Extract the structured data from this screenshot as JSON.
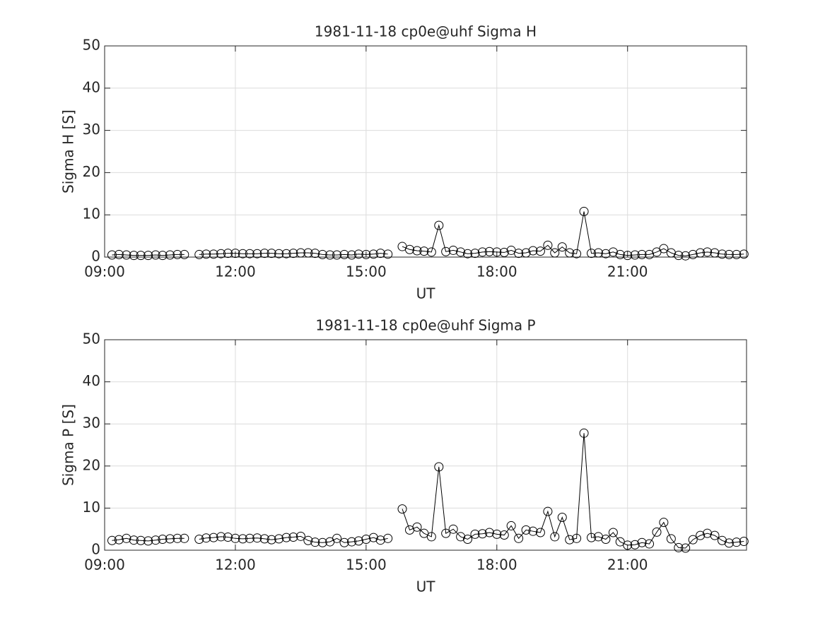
{
  "chart_data": [
    {
      "type": "line",
      "title": "1981-11-18  cp0e@uhf Sigma H",
      "xlabel": "UT",
      "ylabel": "Sigma H [S]",
      "x": [
        9.17,
        9.33,
        9.5,
        9.67,
        9.83,
        10,
        10.17,
        10.33,
        10.5,
        10.67,
        10.83,
        11,
        11.17,
        11.33,
        11.5,
        11.67,
        11.83,
        12,
        12.17,
        12.33,
        12.5,
        12.67,
        12.83,
        13,
        13.17,
        13.33,
        13.5,
        13.67,
        13.83,
        14,
        14.17,
        14.33,
        14.5,
        14.67,
        14.83,
        15,
        15.17,
        15.33,
        15.5,
        15.67,
        15.83,
        16,
        16.17,
        16.33,
        16.5,
        16.67,
        16.83,
        17,
        17.17,
        17.33,
        17.5,
        17.67,
        17.83,
        18,
        18.17,
        18.33,
        18.5,
        18.67,
        18.83,
        19,
        19.17,
        19.33,
        19.5,
        19.67,
        19.83,
        20,
        20.17,
        20.33,
        20.5,
        20.67,
        20.83,
        21,
        21.17,
        21.33,
        21.5,
        21.67,
        21.83,
        22,
        22.17,
        22.33,
        22.5,
        22.67,
        22.83,
        23,
        23.17,
        23.33,
        23.5,
        23.67
      ],
      "values": [
        0.5,
        0.6,
        0.5,
        0.4,
        0.4,
        0.4,
        0.5,
        0.4,
        0.5,
        0.6,
        0.6,
        null,
        0.6,
        0.7,
        0.7,
        0.8,
        0.9,
        0.9,
        0.8,
        0.8,
        0.8,
        0.9,
        0.9,
        0.8,
        0.8,
        0.9,
        1.0,
        1.0,
        0.9,
        0.6,
        0.5,
        0.5,
        0.6,
        0.5,
        0.7,
        0.6,
        0.7,
        0.9,
        0.7,
        null,
        2.5,
        1.8,
        1.5,
        1.4,
        1.2,
        7.5,
        1.3,
        1.6,
        1.2,
        0.8,
        0.9,
        1.2,
        1.3,
        1.2,
        1.1,
        1.6,
        0.9,
        1.0,
        1.5,
        1.4,
        2.8,
        1.0,
        2.4,
        1.0,
        0.8,
        10.8,
        0.9,
        1.0,
        0.8,
        1.2,
        0.6,
        0.4,
        0.5,
        0.6,
        0.6,
        1.2,
        2.0,
        1.0,
        0.4,
        0.3,
        0.6,
        1.0,
        1.2,
        1.0,
        0.7,
        0.6,
        0.6,
        0.7
      ],
      "color": "#000000",
      "xlim": [
        9,
        23.73
      ],
      "ylim": [
        0,
        50
      ],
      "xticks": [
        {
          "value": 9,
          "label": "09:00"
        },
        {
          "value": 12,
          "label": "12:00"
        },
        {
          "value": 15,
          "label": "15:00"
        },
        {
          "value": 18,
          "label": "18:00"
        },
        {
          "value": 21,
          "label": "21:00"
        }
      ],
      "yticks": [
        0,
        10,
        20,
        30,
        40,
        50
      ],
      "grid": true
    },
    {
      "type": "line",
      "title": "1981-11-18  cp0e@uhf Sigma P",
      "xlabel": "UT",
      "ylabel": "Sigma P [S]",
      "x": [
        9.17,
        9.33,
        9.5,
        9.67,
        9.83,
        10,
        10.17,
        10.33,
        10.5,
        10.67,
        10.83,
        11,
        11.17,
        11.33,
        11.5,
        11.67,
        11.83,
        12,
        12.17,
        12.33,
        12.5,
        12.67,
        12.83,
        13,
        13.17,
        13.33,
        13.5,
        13.67,
        13.83,
        14,
        14.17,
        14.33,
        14.5,
        14.67,
        14.83,
        15,
        15.17,
        15.33,
        15.5,
        15.67,
        15.83,
        16,
        16.17,
        16.33,
        16.5,
        16.67,
        16.83,
        17,
        17.17,
        17.33,
        17.5,
        17.67,
        17.83,
        18,
        18.17,
        18.33,
        18.5,
        18.67,
        18.83,
        19,
        19.17,
        19.33,
        19.5,
        19.67,
        19.83,
        20,
        20.17,
        20.33,
        20.5,
        20.67,
        20.83,
        21,
        21.17,
        21.33,
        21.5,
        21.67,
        21.83,
        22,
        22.17,
        22.33,
        22.5,
        22.67,
        22.83,
        23,
        23.17,
        23.33,
        23.5,
        23.67
      ],
      "values": [
        2.3,
        2.5,
        2.8,
        2.4,
        2.3,
        2.2,
        2.4,
        2.6,
        2.7,
        2.8,
        2.8,
        null,
        2.6,
        2.9,
        3.0,
        3.2,
        3.1,
        2.8,
        2.7,
        2.8,
        2.9,
        2.7,
        2.5,
        2.7,
        3.0,
        3.1,
        3.3,
        2.3,
        1.9,
        1.8,
        2.0,
        2.8,
        1.8,
        2.0,
        2.2,
        2.6,
        3.0,
        2.4,
        2.8,
        null,
        9.8,
        4.8,
        5.5,
        4.0,
        3.2,
        19.8,
        4.0,
        5.0,
        3.2,
        2.6,
        3.8,
        3.9,
        4.2,
        3.8,
        3.6,
        5.8,
        2.8,
        4.8,
        4.5,
        4.2,
        9.2,
        3.2,
        7.8,
        2.5,
        2.8,
        27.8,
        3.0,
        3.2,
        2.6,
        4.2,
        2.0,
        1.2,
        1.3,
        1.8,
        1.5,
        4.3,
        6.6,
        2.7,
        0.6,
        0.5,
        2.5,
        3.5,
        4.0,
        3.5,
        2.3,
        1.7,
        1.9,
        2.1
      ],
      "color": "#000000",
      "xlim": [
        9,
        23.73
      ],
      "ylim": [
        0,
        50
      ],
      "xticks": [
        {
          "value": 9,
          "label": "09:00"
        },
        {
          "value": 12,
          "label": "12:00"
        },
        {
          "value": 15,
          "label": "15:00"
        },
        {
          "value": 18,
          "label": "18:00"
        },
        {
          "value": 21,
          "label": "21:00"
        }
      ],
      "yticks": [
        0,
        10,
        20,
        30,
        40,
        50
      ],
      "grid": true
    }
  ]
}
